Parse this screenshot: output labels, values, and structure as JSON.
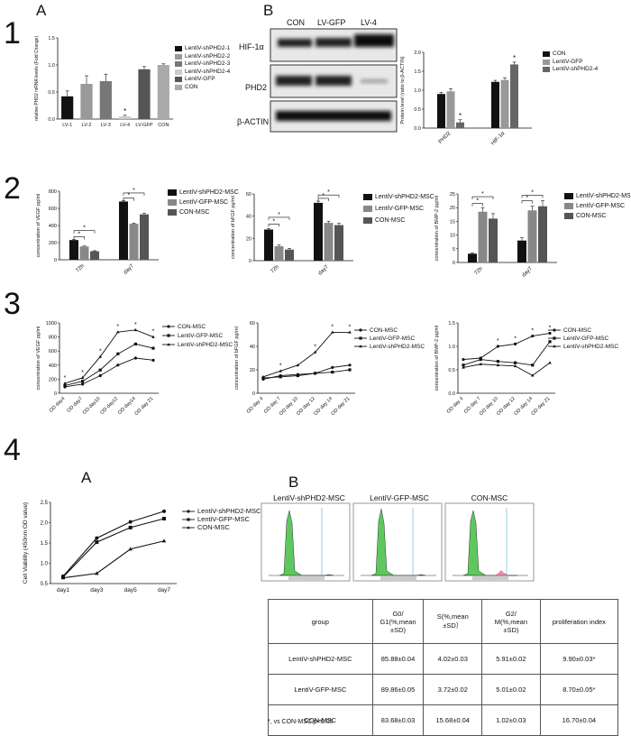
{
  "panels": {
    "p1": "1",
    "p2": "2",
    "p3": "3",
    "p4": "4",
    "A": "A",
    "B": "B"
  },
  "colors": {
    "black": "#111111",
    "dark": "#555555",
    "gray": "#888888",
    "light": "#bbbbbb",
    "vlight": "#dddddd"
  },
  "chart_data": [
    {
      "id": "1A",
      "type": "bar",
      "ylabel": "relative PHD2 mRNA levels (Fold Change)",
      "categories": [
        "LV-1",
        "LV-2",
        "LV-3",
        "LV-4",
        "LV-GFP",
        "CON"
      ],
      "values": [
        0.42,
        0.65,
        0.7,
        0.05,
        0.92,
        1.0
      ],
      "errors": [
        0.1,
        0.15,
        0.13,
        0.02,
        0.05,
        0.02
      ],
      "ylim": [
        0,
        1.5
      ],
      "yticks": [
        "0.0",
        "0.5",
        "1.0",
        "1.5"
      ],
      "stars": [
        "",
        "",
        "",
        "*",
        "",
        ""
      ],
      "legend": [
        "LentiV-shPHD2-1",
        "LentiV-shPHD2-2",
        "LentiV-shPHD2-3",
        "LentiV-shPHD2-4",
        "LentiV-GFP",
        "CON"
      ]
    },
    {
      "id": "1B-bar",
      "type": "bar",
      "ylabel": "Protein level (ratio to β-ACTIN)",
      "categories": [
        "PHD2",
        "HIF-1α"
      ],
      "series": [
        {
          "name": "CON",
          "values": [
            0.9,
            1.22
          ],
          "errors": [
            0.04,
            0.04
          ]
        },
        {
          "name": "LentiV-GFP",
          "values": [
            0.97,
            1.27
          ],
          "errors": [
            0.07,
            0.06
          ]
        },
        {
          "name": "LentiV-shPHD2-4",
          "values": [
            0.15,
            1.68
          ],
          "errors": [
            0.07,
            0.06
          ]
        }
      ],
      "ylim": [
        0,
        2.0
      ],
      "yticks": [
        "0.0",
        "0.5",
        "1.0",
        "1.5",
        "2.0"
      ],
      "stars": [
        [
          "",
          "",
          "*"
        ],
        [
          "",
          "",
          "*"
        ]
      ]
    },
    {
      "id": "2-VEGF",
      "type": "bar",
      "ylabel": "concentration of VEGF pg/ml",
      "categories": [
        "72h",
        "day7"
      ],
      "series": [
        {
          "name": "LentiV-shPHD2-MSC",
          "values": [
            230,
            680
          ],
          "errors": [
            8,
            10
          ]
        },
        {
          "name": "LentiV-GFP-MSC",
          "values": [
            155,
            420
          ],
          "errors": [
            6,
            8
          ]
        },
        {
          "name": "CON-MSC",
          "values": [
            100,
            530
          ],
          "errors": [
            6,
            10
          ]
        }
      ],
      "ylim": [
        0,
        800
      ],
      "yticks": [
        "0",
        "200",
        "400",
        "600",
        "800"
      ]
    },
    {
      "id": "2-bFGF",
      "type": "bar",
      "ylabel": "concentration of bFGF pg/ml",
      "categories": [
        "72h",
        "day7"
      ],
      "series": [
        {
          "name": "LentiV-shPHD2-MSC",
          "values": [
            28,
            52
          ],
          "errors": [
            1,
            1.5
          ]
        },
        {
          "name": "LentiV-GFP-MSC",
          "values": [
            13,
            34
          ],
          "errors": [
            1,
            1.5
          ]
        },
        {
          "name": "CON-MSC",
          "values": [
            10,
            32
          ],
          "errors": [
            1,
            1.5
          ]
        }
      ],
      "ylim": [
        0,
        60
      ],
      "yticks": [
        "0",
        "20",
        "40",
        "60"
      ]
    },
    {
      "id": "2-BMP2",
      "type": "bar",
      "ylabel": "concentration of BMP-2 pg/ml",
      "categories": [
        "72h",
        "day7"
      ],
      "series": [
        {
          "name": "LentiV-shPHD2-MSC",
          "values": [
            3.2,
            8.0
          ],
          "errors": [
            0.3,
            1.0
          ]
        },
        {
          "name": "LentiV-GFP-MSC",
          "values": [
            18.5,
            19.0
          ],
          "errors": [
            1.5,
            1.5
          ]
        },
        {
          "name": "CON-MSC",
          "values": [
            16.0,
            20.5
          ],
          "errors": [
            1.8,
            2.0
          ]
        }
      ],
      "ylim": [
        0,
        25
      ],
      "yticks": [
        "0",
        "5",
        "10",
        "15",
        "20",
        "25"
      ]
    },
    {
      "id": "3-VEGF",
      "type": "line",
      "ylabel": "concentration of VEGF pg/ml",
      "categories": [
        "OD day4",
        "OD day7",
        "OD day10",
        "OD day12",
        "OD day14",
        "OD day 21"
      ],
      "series": [
        {
          "name": "CON-MSC",
          "marker": "circle",
          "values": [
            90,
            130,
            250,
            400,
            500,
            470
          ]
        },
        {
          "name": "LentiV-GFP-MSC",
          "marker": "square",
          "values": [
            110,
            170,
            330,
            560,
            700,
            640
          ]
        },
        {
          "name": "LentiV-shPHD2-MSC",
          "marker": "triangle",
          "values": [
            140,
            220,
            520,
            870,
            900,
            800
          ]
        }
      ],
      "ylim": [
        0,
        1000
      ],
      "yticks": [
        "0",
        "200",
        "400",
        "600",
        "800",
        "1000"
      ]
    },
    {
      "id": "3-bFGF",
      "type": "line",
      "ylabel": "concentration of bFGF pg/ml",
      "categories": [
        "OD day 4",
        "OD day 7",
        "OD day 10",
        "OD day 12",
        "OD day 14",
        "OD day 21"
      ],
      "series": [
        {
          "name": "CON-MSC",
          "marker": "circle",
          "values": [
            12,
            15,
            16,
            17,
            22,
            24
          ]
        },
        {
          "name": "LentiV-GFP-MSC",
          "marker": "square",
          "values": [
            13,
            14,
            15,
            17,
            18,
            20
          ]
        },
        {
          "name": "LentiV-shPHD2-MSC",
          "marker": "triangle",
          "values": [
            14,
            19,
            24,
            35,
            52,
            52
          ]
        }
      ],
      "ylim": [
        0,
        60
      ],
      "yticks": [
        "0",
        "20",
        "40",
        "60"
      ]
    },
    {
      "id": "3-BMP2",
      "type": "line",
      "ylabel": "concentration of BMP-2 pg/ml",
      "categories": [
        "OD day 4",
        "OD day 7",
        "OD day 10",
        "OD day 12",
        "OD day 14",
        "OD day 21"
      ],
      "series": [
        {
          "name": "CON-MSC",
          "marker": "circle",
          "values": [
            0.72,
            0.75,
            1.0,
            1.05,
            1.22,
            1.28
          ]
        },
        {
          "name": "LentiV-GFP-MSC",
          "marker": "square",
          "values": [
            0.6,
            0.72,
            0.68,
            0.65,
            0.6,
            1.1
          ]
        },
        {
          "name": "LentiV-shPHD2-MSC",
          "marker": "triangle",
          "values": [
            0.55,
            0.62,
            0.6,
            0.58,
            0.38,
            0.65
          ]
        }
      ],
      "ylim": [
        0,
        1.5
      ],
      "yticks": [
        "0.0",
        "0.5",
        "1.0",
        "1.5"
      ]
    },
    {
      "id": "4A",
      "type": "line",
      "ylabel": "Cell Viability (450nm OD value)",
      "categories": [
        "day1",
        "day3",
        "day5",
        "day7"
      ],
      "series": [
        {
          "name": "LentiV-shPHD2-MSC",
          "marker": "circle",
          "values": [
            0.68,
            1.62,
            2.02,
            2.28
          ]
        },
        {
          "name": "LentiV-GFP-MSC",
          "marker": "square",
          "values": [
            0.66,
            1.52,
            1.88,
            2.1
          ]
        },
        {
          "name": "CON-MSC",
          "marker": "triangle",
          "values": [
            0.64,
            0.75,
            1.35,
            1.55
          ]
        }
      ],
      "ylim": [
        0.5,
        2.5
      ],
      "yticks": [
        "0.5",
        "1.0",
        "1.5",
        "2.0",
        "2.5"
      ]
    }
  ],
  "blot": {
    "cols": [
      "CON",
      "LV-GFP",
      "LV-4"
    ],
    "rows": [
      "HIF-1α",
      "PHD2",
      "β-ACTIN"
    ]
  },
  "flow": {
    "titles": [
      "LentiV-shPHD2-MSC",
      "LentiV-GFP-MSC",
      "CON-MSC"
    ]
  },
  "table": {
    "headers": [
      "group",
      "G0/\nG1(%,mean\n±SD)",
      "S(%,mean\n±SD）",
      "G2/\nM(%,mean\n±SD)",
      "proliferation index"
    ],
    "rows": [
      [
        "LentiV-shPHD2-MSC",
        "85.88±0.04",
        "4.02±0.03",
        "5.91±0.02",
        "9.90±0.03*"
      ],
      [
        "LentiV-GFP-MSC",
        "89.86±0.05",
        "3.72±0.02",
        "5.01±0.02",
        "8.70±0.05*"
      ],
      [
        "CON-MSC",
        "83.68±0.03",
        "15.68±0.04",
        "1.02±0.03",
        "16.70±0.04"
      ]
    ],
    "footnote": "*, vs CON-MSC,p<0.05"
  }
}
